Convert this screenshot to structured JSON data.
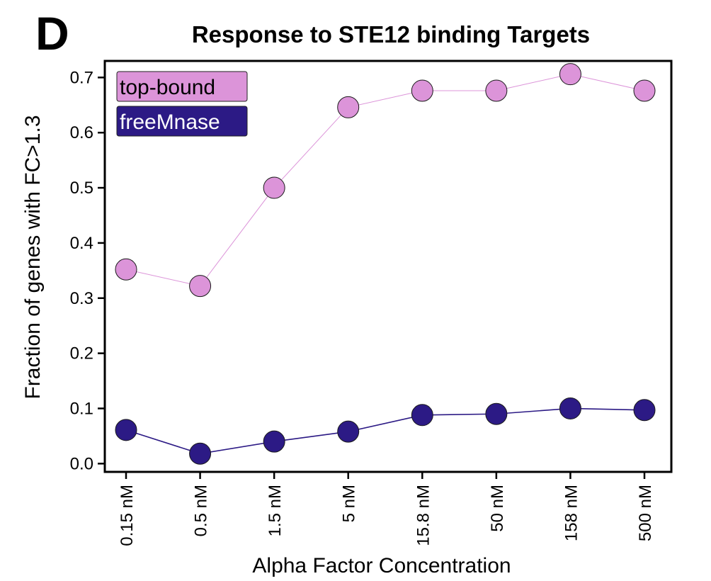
{
  "panel_letter": "D",
  "colors": {
    "top_bound": "#dc94d9",
    "free_mnase": "#2c1a85",
    "axes": "#000000"
  },
  "chart_data": {
    "type": "line",
    "title": "Response to STE12 binding Targets",
    "xlabel": "Alpha Factor Concentration",
    "ylabel": "Fraction of genes with FC>1.3",
    "categories": [
      "0.15 nM",
      "0.5 nM",
      "1.5 nM",
      "5 nM",
      "15.8 nM",
      "50 nM",
      "158 nM",
      "500 nM"
    ],
    "ylim": [
      -0.015,
      0.73
    ],
    "yticks": [
      "0.0",
      "0.1",
      "0.2",
      "0.3",
      "0.4",
      "0.5",
      "0.6",
      "0.7"
    ],
    "legend_position": "top-left",
    "grid": false,
    "series": [
      {
        "name": "top-bound",
        "color": "#dc94d9",
        "legend_text_color": "#000000",
        "values": [
          0.352,
          0.322,
          0.5,
          0.646,
          0.676,
          0.676,
          0.706,
          0.676
        ]
      },
      {
        "name": "freeMnase",
        "color": "#2c1a85",
        "legend_text_color": "#ffffff",
        "values": [
          0.061,
          0.018,
          0.04,
          0.058,
          0.088,
          0.09,
          0.1,
          0.097
        ]
      }
    ]
  }
}
